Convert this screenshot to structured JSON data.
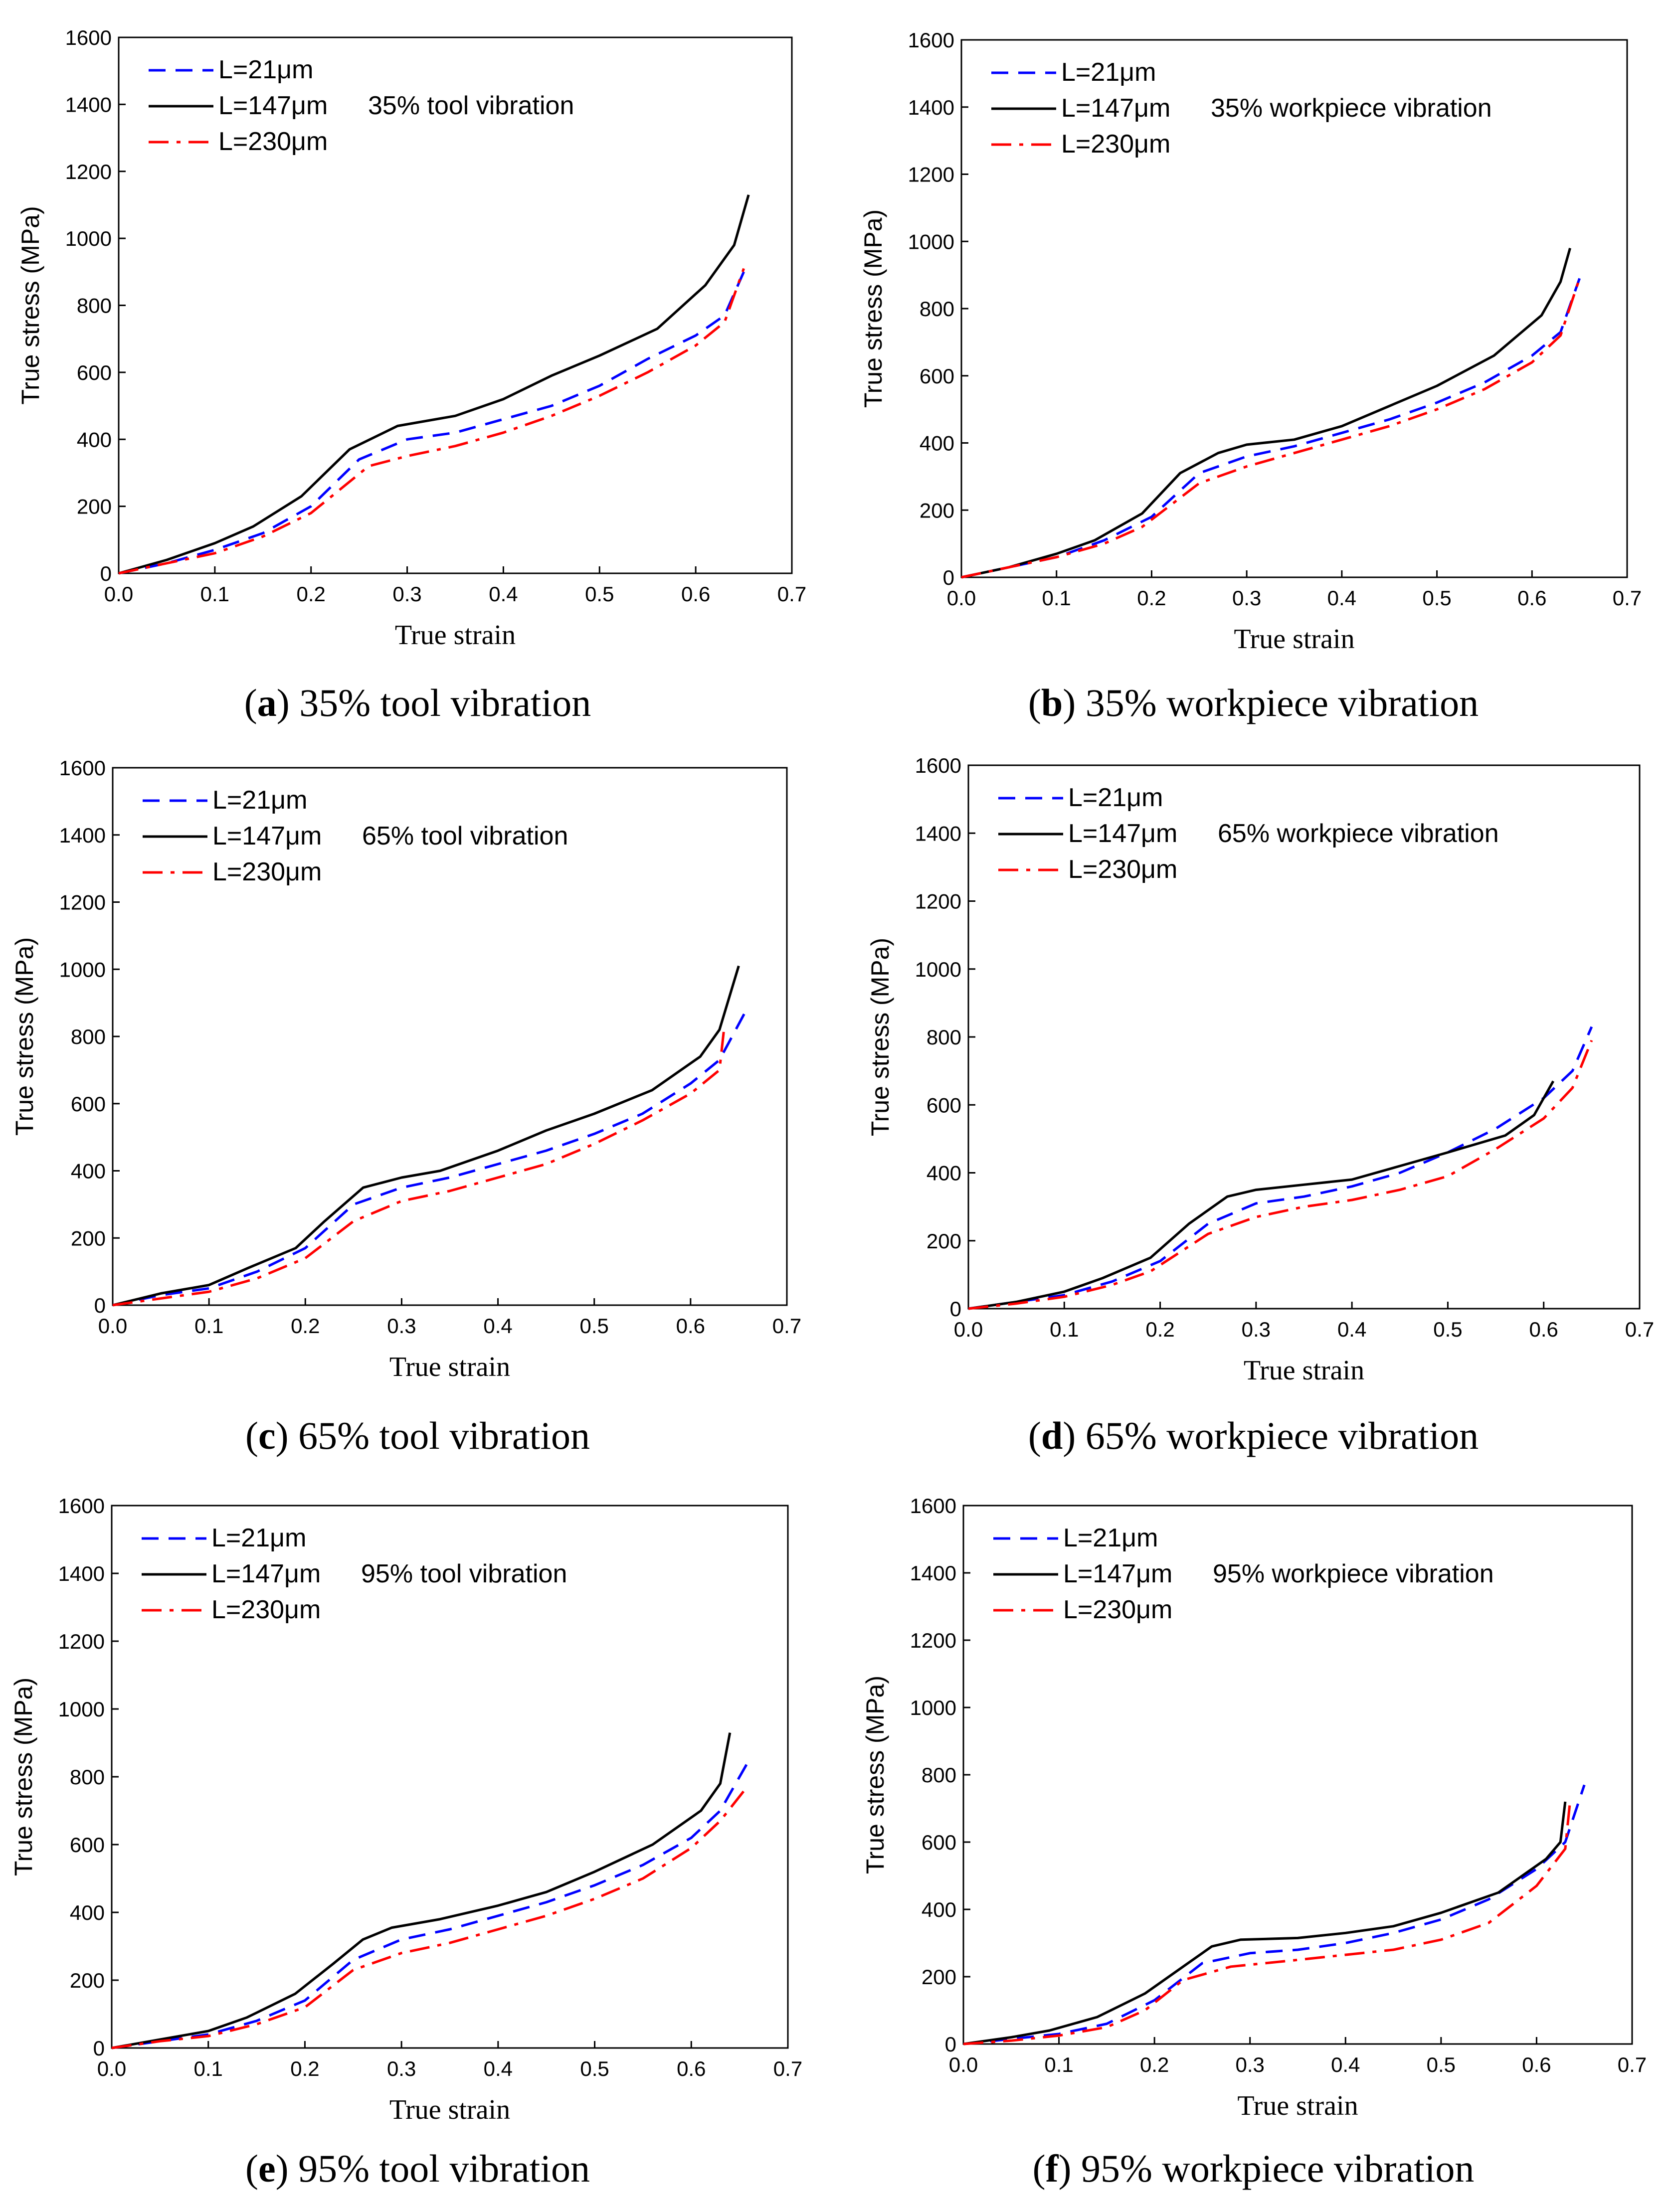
{
  "chart_data": [
    {
      "type": "line",
      "caption_letter": "a",
      "caption_text": "35% tool vibration",
      "annotation": "35% tool vibration",
      "xlabel": "True strain",
      "ylabel": "True stress (MPa)",
      "xlim": [
        0,
        0.7
      ],
      "ylim": [
        0,
        1600
      ],
      "xticks": [
        "0.0",
        "0.1",
        "0.2",
        "0.3",
        "0.4",
        "0.5",
        "0.6",
        "0.7"
      ],
      "yticks": [
        "0",
        "200",
        "400",
        "600",
        "800",
        "1000",
        "1200",
        "1400",
        "1600"
      ],
      "legend_position": "top-left",
      "series": [
        {
          "name": "L=21μm",
          "color": "#0000ff",
          "dash": "dashed",
          "x": [
            0,
            0.05,
            0.1,
            0.15,
            0.2,
            0.25,
            0.3,
            0.35,
            0.4,
            0.45,
            0.5,
            0.55,
            0.6,
            0.63,
            0.65
          ],
          "y": [
            0,
            30,
            70,
            120,
            200,
            340,
            400,
            420,
            460,
            500,
            560,
            640,
            710,
            770,
            900
          ]
        },
        {
          "name": "L=147μm",
          "color": "#000000",
          "dash": "solid",
          "x": [
            0,
            0.05,
            0.1,
            0.14,
            0.19,
            0.24,
            0.29,
            0.35,
            0.4,
            0.45,
            0.5,
            0.56,
            0.61,
            0.64,
            0.655
          ],
          "y": [
            0,
            40,
            90,
            140,
            230,
            370,
            440,
            470,
            520,
            590,
            650,
            730,
            860,
            980,
            1130
          ]
        },
        {
          "name": "L=230μm",
          "color": "#ff0000",
          "dash": "dashdot",
          "x": [
            0,
            0.05,
            0.1,
            0.15,
            0.2,
            0.26,
            0.3,
            0.35,
            0.4,
            0.45,
            0.5,
            0.55,
            0.6,
            0.63,
            0.65
          ],
          "y": [
            0,
            30,
            60,
            110,
            180,
            320,
            350,
            380,
            420,
            470,
            530,
            600,
            680,
            750,
            910
          ]
        }
      ]
    },
    {
      "type": "line",
      "caption_letter": "b",
      "caption_text": "35% workpiece vibration",
      "annotation": "35% workpiece vibration",
      "xlabel": "True strain",
      "ylabel": "True stress (MPa)",
      "xlim": [
        0,
        0.7
      ],
      "ylim": [
        0,
        1600
      ],
      "xticks": [
        "0.0",
        "0.1",
        "0.2",
        "0.3",
        "0.4",
        "0.5",
        "0.6",
        "0.7"
      ],
      "yticks": [
        "0",
        "200",
        "400",
        "600",
        "800",
        "1000",
        "1200",
        "1400",
        "1600"
      ],
      "legend_position": "top-left",
      "series": [
        {
          "name": "L=21μm",
          "color": "#0000ff",
          "dash": "dashed",
          "x": [
            0,
            0.05,
            0.1,
            0.15,
            0.2,
            0.25,
            0.3,
            0.35,
            0.4,
            0.45,
            0.5,
            0.55,
            0.6,
            0.63,
            0.65
          ],
          "y": [
            0,
            30,
            60,
            110,
            180,
            310,
            360,
            390,
            430,
            470,
            520,
            580,
            660,
            730,
            890
          ]
        },
        {
          "name": "L=147μm",
          "color": "#000000",
          "dash": "solid",
          "x": [
            0,
            0.05,
            0.1,
            0.14,
            0.19,
            0.23,
            0.27,
            0.3,
            0.35,
            0.4,
            0.45,
            0.5,
            0.56,
            0.61,
            0.63,
            0.64
          ],
          "y": [
            0,
            30,
            70,
            110,
            190,
            310,
            370,
            395,
            410,
            450,
            510,
            570,
            660,
            780,
            880,
            980
          ]
        },
        {
          "name": "L=230μm",
          "color": "#ff0000",
          "dash": "dashdot",
          "x": [
            0,
            0.05,
            0.1,
            0.15,
            0.19,
            0.25,
            0.3,
            0.35,
            0.4,
            0.45,
            0.5,
            0.55,
            0.6,
            0.63,
            0.65
          ],
          "y": [
            0,
            30,
            60,
            100,
            150,
            280,
            330,
            370,
            410,
            450,
            500,
            560,
            640,
            720,
            890
          ]
        }
      ]
    },
    {
      "type": "line",
      "caption_letter": "c",
      "caption_text": "65% tool vibration",
      "annotation": "65% tool vibration",
      "xlabel": "True strain",
      "ylabel": "True stress (MPa)",
      "xlim": [
        0,
        0.7
      ],
      "ylim": [
        0,
        1600
      ],
      "xticks": [
        "0.0",
        "0.1",
        "0.2",
        "0.3",
        "0.4",
        "0.5",
        "0.6",
        "0.7"
      ],
      "yticks": [
        "0",
        "200",
        "400",
        "600",
        "800",
        "1000",
        "1200",
        "1400",
        "1600"
      ],
      "legend_position": "top-left",
      "series": [
        {
          "name": "L=21μm",
          "color": "#0000ff",
          "dash": "dashed",
          "x": [
            0,
            0.05,
            0.1,
            0.15,
            0.2,
            0.25,
            0.3,
            0.35,
            0.4,
            0.45,
            0.5,
            0.55,
            0.6,
            0.63,
            0.66
          ],
          "y": [
            0,
            30,
            50,
            100,
            170,
            300,
            350,
            380,
            420,
            460,
            510,
            570,
            660,
            730,
            890
          ]
        },
        {
          "name": "L=147μm",
          "color": "#000000",
          "dash": "solid",
          "x": [
            0,
            0.05,
            0.1,
            0.14,
            0.19,
            0.22,
            0.26,
            0.3,
            0.34,
            0.4,
            0.45,
            0.5,
            0.56,
            0.61,
            0.63,
            0.65
          ],
          "y": [
            0,
            35,
            60,
            110,
            170,
            250,
            350,
            380,
            400,
            460,
            520,
            570,
            640,
            740,
            820,
            1010
          ]
        },
        {
          "name": "L=230μm",
          "color": "#ff0000",
          "dash": "dashdot",
          "x": [
            0,
            0.05,
            0.1,
            0.15,
            0.2,
            0.25,
            0.3,
            0.35,
            0.4,
            0.45,
            0.5,
            0.55,
            0.6,
            0.63,
            0.635
          ],
          "y": [
            0,
            20,
            40,
            80,
            140,
            250,
            310,
            340,
            380,
            420,
            480,
            550,
            630,
            700,
            830
          ]
        }
      ]
    },
    {
      "type": "line",
      "caption_letter": "d",
      "caption_text": "65% workpiece vibration",
      "annotation": "65% workpiece vibration",
      "xlabel": "True strain",
      "ylabel": "True stress (MPa)",
      "xlim": [
        0,
        0.7
      ],
      "ylim": [
        0,
        1600
      ],
      "xticks": [
        "0.0",
        "0.1",
        "0.2",
        "0.3",
        "0.4",
        "0.5",
        "0.6",
        "0.7"
      ],
      "yticks": [
        "0",
        "200",
        "400",
        "600",
        "800",
        "1000",
        "1200",
        "1400",
        "1600"
      ],
      "legend_position": "top-left",
      "series": [
        {
          "name": "L=21μm",
          "color": "#0000ff",
          "dash": "dashed",
          "x": [
            0,
            0.05,
            0.1,
            0.15,
            0.2,
            0.25,
            0.3,
            0.35,
            0.4,
            0.45,
            0.5,
            0.55,
            0.6,
            0.63,
            0.65
          ],
          "y": [
            0,
            20,
            40,
            80,
            140,
            250,
            310,
            330,
            360,
            400,
            460,
            530,
            620,
            700,
            830
          ]
        },
        {
          "name": "L=147μm",
          "color": "#000000",
          "dash": "solid",
          "x": [
            0,
            0.05,
            0.1,
            0.14,
            0.19,
            0.23,
            0.27,
            0.3,
            0.35,
            0.4,
            0.45,
            0.5,
            0.56,
            0.59,
            0.61
          ],
          "y": [
            0,
            20,
            50,
            90,
            150,
            250,
            330,
            350,
            365,
            380,
            420,
            460,
            510,
            570,
            670
          ]
        },
        {
          "name": "L=230μm",
          "color": "#ff0000",
          "dash": "dashdot",
          "x": [
            0,
            0.05,
            0.1,
            0.15,
            0.19,
            0.25,
            0.3,
            0.35,
            0.4,
            0.45,
            0.5,
            0.55,
            0.6,
            0.63,
            0.65
          ],
          "y": [
            0,
            15,
            35,
            70,
            110,
            220,
            270,
            300,
            320,
            350,
            390,
            470,
            560,
            650,
            790
          ]
        }
      ]
    },
    {
      "type": "line",
      "caption_letter": "e",
      "caption_text": "95% tool vibration",
      "annotation": "95% tool vibration",
      "xlabel": "True strain",
      "ylabel": "True stress (MPa)",
      "xlim": [
        0,
        0.7
      ],
      "ylim": [
        0,
        1600
      ],
      "xticks": [
        "0.0",
        "0.1",
        "0.2",
        "0.3",
        "0.4",
        "0.5",
        "0.6",
        "0.7"
      ],
      "yticks": [
        "0",
        "200",
        "400",
        "600",
        "800",
        "1000",
        "1200",
        "1400",
        "1600"
      ],
      "legend_position": "top-left",
      "series": [
        {
          "name": "L=21μm",
          "color": "#0000ff",
          "dash": "dashed",
          "x": [
            0,
            0.05,
            0.1,
            0.15,
            0.2,
            0.25,
            0.3,
            0.35,
            0.4,
            0.45,
            0.5,
            0.55,
            0.6,
            0.63,
            0.66
          ],
          "y": [
            0,
            20,
            40,
            80,
            140,
            260,
            320,
            350,
            390,
            430,
            480,
            540,
            620,
            700,
            850
          ]
        },
        {
          "name": "L=147μm",
          "color": "#000000",
          "dash": "solid",
          "x": [
            0,
            0.05,
            0.1,
            0.14,
            0.19,
            0.23,
            0.26,
            0.29,
            0.34,
            0.4,
            0.45,
            0.5,
            0.56,
            0.61,
            0.63,
            0.64
          ],
          "y": [
            0,
            25,
            50,
            90,
            160,
            250,
            320,
            355,
            380,
            420,
            460,
            520,
            600,
            700,
            780,
            930
          ]
        },
        {
          "name": "L=230μm",
          "color": "#ff0000",
          "dash": "dashdot",
          "x": [
            0,
            0.05,
            0.1,
            0.15,
            0.2,
            0.25,
            0.3,
            0.35,
            0.4,
            0.45,
            0.5,
            0.55,
            0.6,
            0.63,
            0.655
          ],
          "y": [
            0,
            20,
            35,
            70,
            120,
            230,
            280,
            310,
            350,
            390,
            440,
            500,
            590,
            670,
            760
          ]
        }
      ]
    },
    {
      "type": "line",
      "caption_letter": "f",
      "caption_text": "95% workpiece vibration",
      "annotation": "95% workpiece vibration",
      "xlabel": "True strain",
      "ylabel": "True stress (MPa)",
      "xlim": [
        0,
        0.7
      ],
      "ylim": [
        0,
        1600
      ],
      "xticks": [
        "0.0",
        "0.1",
        "0.2",
        "0.3",
        "0.4",
        "0.5",
        "0.6",
        "0.7"
      ],
      "yticks": [
        "0",
        "200",
        "400",
        "600",
        "800",
        "1000",
        "1200",
        "1400",
        "1600"
      ],
      "legend_position": "top-left",
      "series": [
        {
          "name": "L=21μm",
          "color": "#0000ff",
          "dash": "dashed",
          "x": [
            0,
            0.05,
            0.1,
            0.15,
            0.2,
            0.25,
            0.3,
            0.35,
            0.4,
            0.45,
            0.5,
            0.55,
            0.6,
            0.63,
            0.65
          ],
          "y": [
            0,
            15,
            30,
            60,
            130,
            240,
            270,
            280,
            300,
            330,
            370,
            430,
            520,
            600,
            770
          ]
        },
        {
          "name": "L=147μm",
          "color": "#000000",
          "dash": "solid",
          "x": [
            0,
            0.05,
            0.09,
            0.14,
            0.19,
            0.23,
            0.26,
            0.29,
            0.35,
            0.4,
            0.45,
            0.5,
            0.56,
            0.61,
            0.625,
            0.63
          ],
          "y": [
            0,
            20,
            40,
            80,
            150,
            230,
            290,
            310,
            315,
            330,
            350,
            390,
            450,
            550,
            600,
            720
          ]
        },
        {
          "name": "L=230μm",
          "color": "#ff0000",
          "dash": "dashdot",
          "x": [
            0,
            0.05,
            0.1,
            0.15,
            0.19,
            0.23,
            0.28,
            0.35,
            0.4,
            0.45,
            0.5,
            0.55,
            0.6,
            0.63,
            0.635
          ],
          "y": [
            0,
            10,
            25,
            50,
            100,
            190,
            230,
            250,
            265,
            280,
            310,
            360,
            470,
            580,
            720
          ]
        }
      ]
    }
  ]
}
